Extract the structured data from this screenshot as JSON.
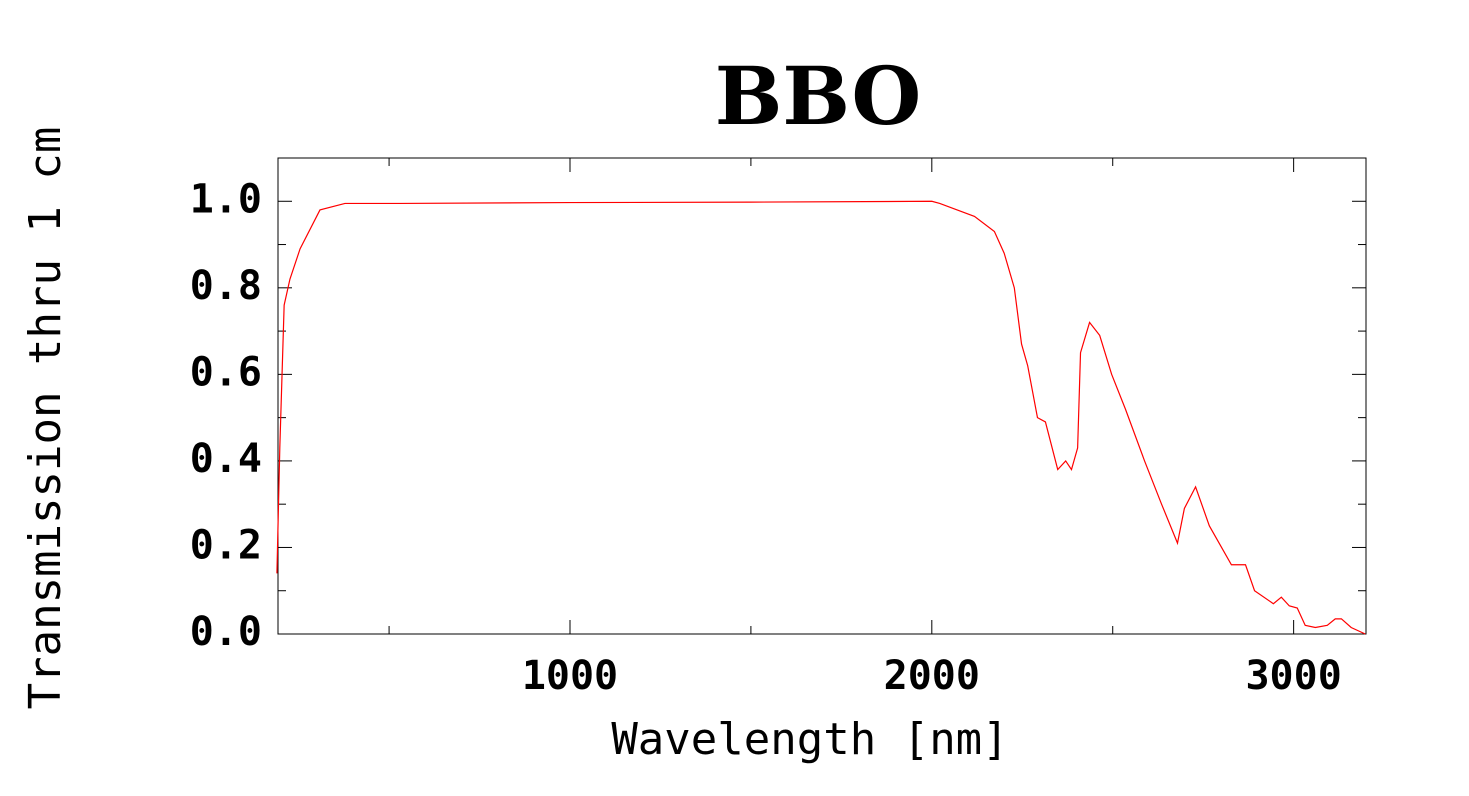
{
  "chart_data": {
    "type": "line",
    "title": "BBO",
    "x_label": "Wavelength [nm]",
    "y_label": "Transmission thru 1 cm",
    "x": [
      190,
      198,
      210,
      226,
      254,
      309,
      378,
      530,
      1000,
      1500,
      2000,
      2022,
      2118,
      2173,
      2200,
      2228,
      2248,
      2265,
      2292,
      2314,
      2348,
      2370,
      2386,
      2403,
      2411,
      2436,
      2464,
      2497,
      2535,
      2588,
      2635,
      2679,
      2698,
      2729,
      2767,
      2828,
      2867,
      2892,
      2944,
      2966,
      2988,
      3010,
      3032,
      3060,
      3093,
      3115,
      3132,
      3159,
      3198
    ],
    "series": [
      {
        "name": "BBO",
        "color": "#ff0000",
        "values": [
          0.14,
          0.43,
          0.76,
          0.82,
          0.89,
          0.98,
          0.995,
          0.995,
          0.997,
          0.998,
          1.0,
          0.995,
          0.965,
          0.93,
          0.88,
          0.8,
          0.67,
          0.62,
          0.5,
          0.49,
          0.38,
          0.4,
          0.38,
          0.43,
          0.65,
          0.72,
          0.69,
          0.6,
          0.52,
          0.4,
          0.3,
          0.21,
          0.29,
          0.34,
          0.25,
          0.16,
          0.16,
          0.1,
          0.07,
          0.085,
          0.065,
          0.06,
          0.02,
          0.015,
          0.02,
          0.035,
          0.035,
          0.015,
          0.0
        ]
      }
    ],
    "xlim": [
      193,
      3200
    ],
    "xticks": [
      1000,
      2000,
      3000
    ],
    "ylim": [
      0,
      1.1
    ],
    "yticks": [
      {
        "value": 0,
        "label": "0.0"
      },
      0.2,
      0.4,
      0.6,
      0.8,
      {
        "value": 1,
        "label": "1.0"
      }
    ],
    "grid": false
  }
}
